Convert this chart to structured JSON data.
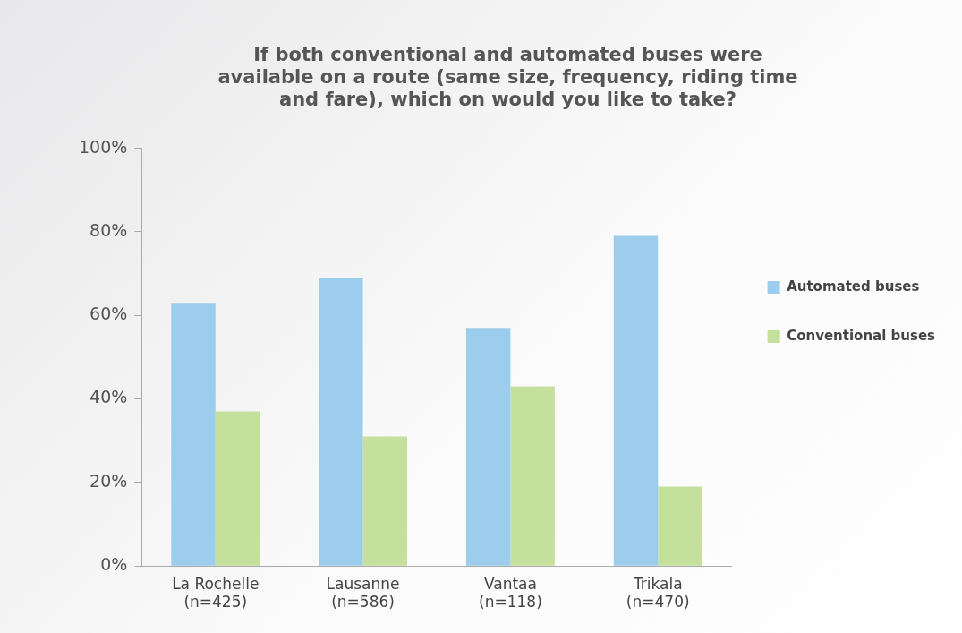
{
  "chart_data": {
    "type": "bar",
    "title": "If both conventional and automated buses were\navailable on a route (same size, frequency, riding time\nand fare), which on would you like to take?",
    "categories": [
      "La Rochelle\n(n=425)",
      "Lausanne\n(n=586)",
      "Vantaa\n(n=118)",
      "Trikala\n(n=470)"
    ],
    "series": [
      {
        "name": "Automated buses",
        "color": "#9dcdec",
        "values": [
          63,
          69,
          57,
          79
        ]
      },
      {
        "name": "Conventional buses",
        "color": "#c5df9c",
        "values": [
          37,
          31,
          43,
          19
        ]
      }
    ],
    "ylim": [
      0,
      100
    ],
    "yticks": [
      {
        "value": 0,
        "label": "0%"
      },
      {
        "value": 20,
        "label": "20%"
      },
      {
        "value": 40,
        "label": "40%"
      },
      {
        "value": 60,
        "label": "60%"
      },
      {
        "value": 80,
        "label": "80%"
      },
      {
        "value": 100,
        "label": "100%"
      }
    ],
    "grid": false,
    "legend": "right"
  }
}
